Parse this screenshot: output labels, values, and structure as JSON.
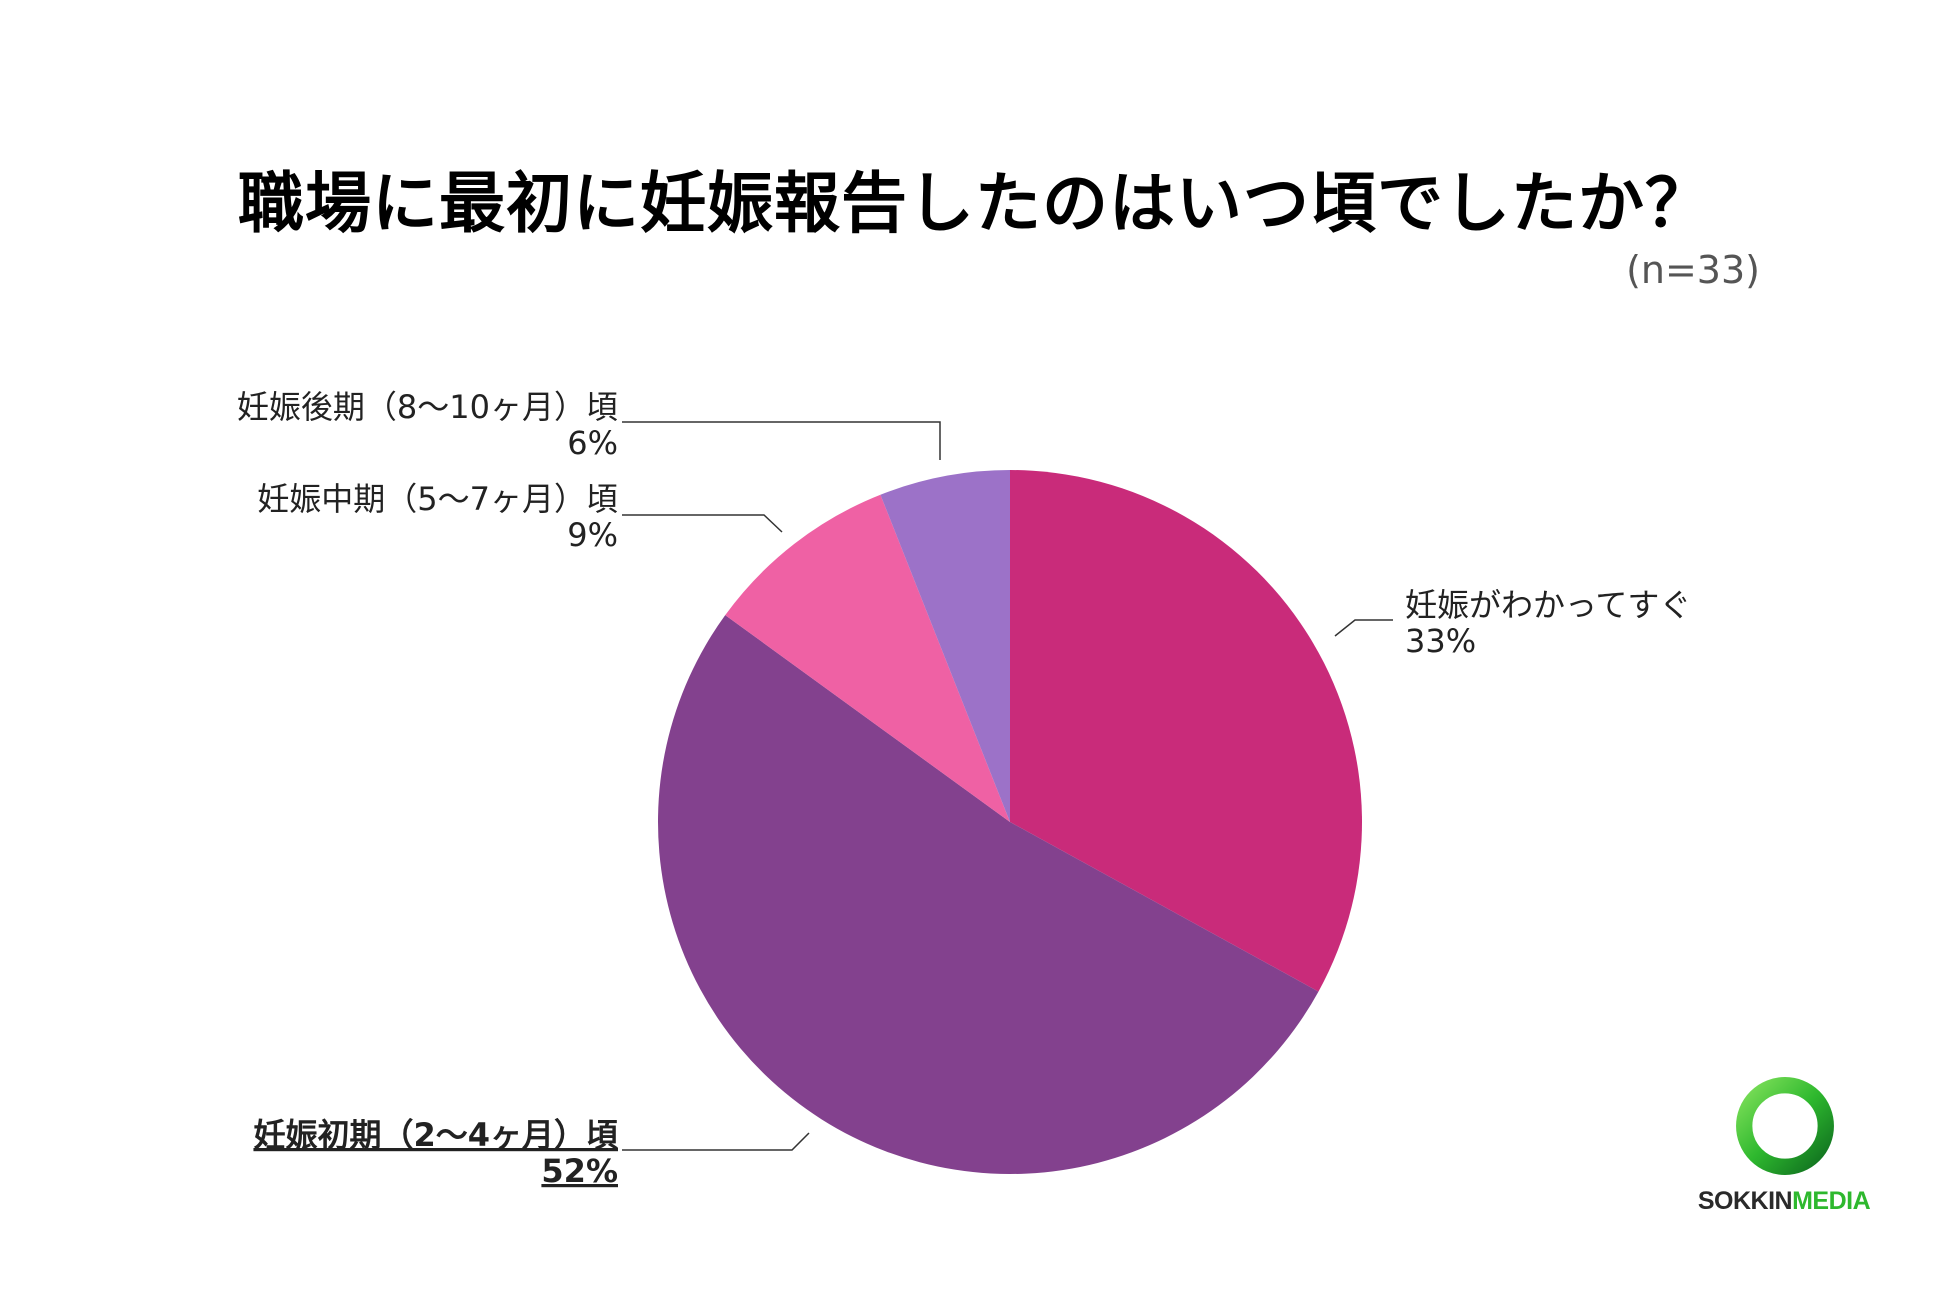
{
  "title": "職場に最初に妊娠報告したのはいつ頃でしたか？",
  "sample_size": "(n=33)",
  "colors": {
    "immediately": "#C92B7A",
    "early": "#83418E",
    "mid": "#EF61A4",
    "late": "#9C72C8"
  },
  "chart_data": {
    "type": "pie",
    "title": "職場に最初に妊娠報告したのはいつ頃でしたか？",
    "slices": [
      {
        "label": "妊娠がわかってすぐ",
        "value": 33,
        "value_label": "33%",
        "color": "#C92B7A",
        "emphasis": false
      },
      {
        "label": "妊娠初期（2〜4ヶ月）頃",
        "value": 52,
        "value_label": "52%",
        "color": "#83418E",
        "emphasis": true
      },
      {
        "label": "妊娠中期（5〜7ヶ月）頃",
        "value": 9,
        "value_label": "9%",
        "color": "#EF61A4",
        "emphasis": false
      },
      {
        "label": "妊娠後期（8〜10ヶ月）頃",
        "value": 6,
        "value_label": "6%",
        "color": "#9C72C8",
        "emphasis": false
      }
    ]
  },
  "logo": {
    "part1": "SOKKIN",
    "part2": "MEDIA",
    "ring_color": "#2eb82e"
  }
}
